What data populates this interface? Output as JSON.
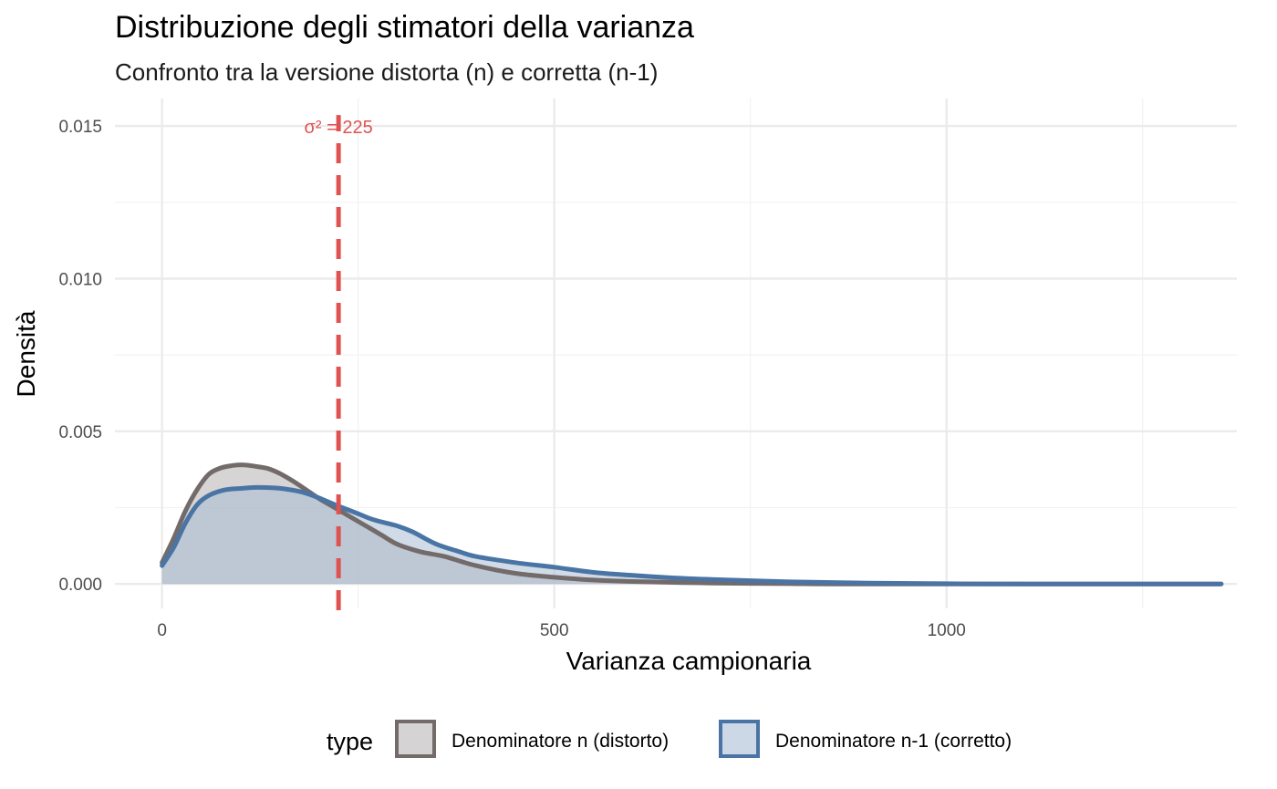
{
  "chart_data": {
    "type": "area",
    "title": "Distribuzione degli stimatori della varianza",
    "subtitle": "Confronto tra la versione distorta (n) e corretta (n-1)",
    "xlabel": "Varianza campionaria",
    "ylabel": "Densità",
    "xlim": [
      -60,
      1370
    ],
    "ylim": [
      -0.0008,
      0.0159
    ],
    "x_ticks": [
      0,
      500,
      1000
    ],
    "x_tick_labels": [
      "0",
      "500",
      "1000"
    ],
    "x_minor_ticks": [
      250,
      750,
      1250
    ],
    "y_ticks": [
      0,
      0.005,
      0.01,
      0.015
    ],
    "y_tick_labels": [
      "0.000",
      "0.005",
      "0.010",
      "0.015"
    ],
    "y_minor_ticks": [
      0.0025,
      0.0075,
      0.0125
    ],
    "grid": true,
    "legend": {
      "title": "type",
      "position": "bottom"
    },
    "series": [
      {
        "name": "Denominatore n (distorto)",
        "line_color": "#736a6a",
        "fill_color": "#b5b0b0",
        "points": [
          [
            0,
            0.0007
          ],
          [
            15,
            0.0015
          ],
          [
            30,
            0.0024
          ],
          [
            45,
            0.0031
          ],
          [
            60,
            0.0036
          ],
          [
            75,
            0.0038
          ],
          [
            90,
            0.00388
          ],
          [
            105,
            0.0039
          ],
          [
            120,
            0.00385
          ],
          [
            135,
            0.00378
          ],
          [
            150,
            0.00362
          ],
          [
            165,
            0.0034
          ],
          [
            180,
            0.00315
          ],
          [
            200,
            0.0028
          ],
          [
            220,
            0.0025
          ],
          [
            240,
            0.0022
          ],
          [
            260,
            0.0019
          ],
          [
            280,
            0.0016
          ],
          [
            300,
            0.0013
          ],
          [
            330,
            0.00105
          ],
          [
            360,
            0.0009
          ],
          [
            400,
            0.0006
          ],
          [
            450,
            0.00035
          ],
          [
            500,
            0.00022
          ],
          [
            550,
            0.00013
          ],
          [
            600,
            8e-05
          ],
          [
            700,
            3e-05
          ],
          [
            800,
            1e-05
          ],
          [
            900,
            0.0
          ],
          [
            1350,
            0.0
          ]
        ]
      },
      {
        "name": "Denominatore n-1 (corretto)",
        "line_color": "#4a74a4",
        "fill_color": "#a9bdd3",
        "points": [
          [
            0,
            0.0006
          ],
          [
            15,
            0.0012
          ],
          [
            30,
            0.002
          ],
          [
            45,
            0.0026
          ],
          [
            60,
            0.0029
          ],
          [
            80,
            0.00308
          ],
          [
            100,
            0.00313
          ],
          [
            120,
            0.00316
          ],
          [
            140,
            0.00315
          ],
          [
            160,
            0.0031
          ],
          [
            180,
            0.003
          ],
          [
            200,
            0.00282
          ],
          [
            220,
            0.0026
          ],
          [
            250,
            0.0023
          ],
          [
            270,
            0.0021
          ],
          [
            300,
            0.0019
          ],
          [
            320,
            0.0017
          ],
          [
            350,
            0.0013
          ],
          [
            380,
            0.00105
          ],
          [
            400,
            0.0009
          ],
          [
            450,
            0.0007
          ],
          [
            500,
            0.00055
          ],
          [
            550,
            0.00038
          ],
          [
            600,
            0.00028
          ],
          [
            650,
            0.0002
          ],
          [
            700,
            0.00015
          ],
          [
            800,
            7e-05
          ],
          [
            900,
            3e-05
          ],
          [
            1000,
            1e-05
          ],
          [
            1100,
            0.0
          ],
          [
            1350,
            0.0
          ]
        ]
      }
    ],
    "reference_line": {
      "x": 225,
      "label": "σ² = 225",
      "color": "#e05252",
      "style": "dashed"
    }
  }
}
